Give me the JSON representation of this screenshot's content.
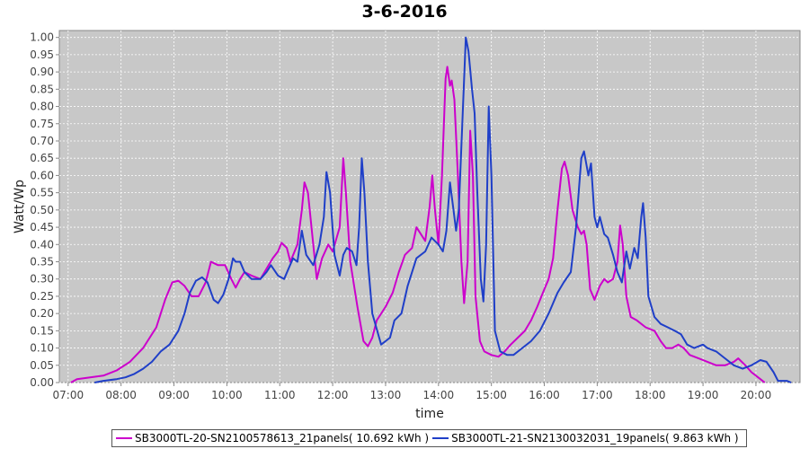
{
  "chart_data": {
    "type": "line",
    "title": "3-6-2016",
    "xlabel": "time",
    "ylabel": "Watt/Wp",
    "x_ticks": [
      "07:00",
      "08:00",
      "09:00",
      "10:00",
      "11:00",
      "12:00",
      "13:00",
      "14:00",
      "15:00",
      "16:00",
      "17:00",
      "18:00",
      "19:00",
      "20:00"
    ],
    "xlim": [
      "06:50",
      "20:50"
    ],
    "ylim": [
      0,
      1.02
    ],
    "y_ticks": [
      0.0,
      0.05,
      0.1,
      0.15,
      0.2,
      0.25,
      0.3,
      0.35,
      0.4,
      0.45,
      0.5,
      0.55,
      0.6,
      0.65,
      0.7,
      0.75,
      0.8,
      0.85,
      0.9,
      0.95,
      1.0
    ],
    "grid": true,
    "legend_position": "bottom",
    "series": [
      {
        "name": "SB3000TL-20-SN2100578613_21panels( 10.692 kWh )",
        "color": "#cc00cc",
        "points": [
          [
            "07:03",
            0.0
          ],
          [
            "07:10",
            0.01
          ],
          [
            "07:25",
            0.015
          ],
          [
            "07:40",
            0.02
          ],
          [
            "07:55",
            0.035
          ],
          [
            "08:10",
            0.06
          ],
          [
            "08:25",
            0.1
          ],
          [
            "08:40",
            0.16
          ],
          [
            "08:50",
            0.24
          ],
          [
            "08:58",
            0.29
          ],
          [
            "09:05",
            0.295
          ],
          [
            "09:12",
            0.28
          ],
          [
            "09:20",
            0.25
          ],
          [
            "09:28",
            0.25
          ],
          [
            "09:36",
            0.29
          ],
          [
            "09:42",
            0.35
          ],
          [
            "09:50",
            0.34
          ],
          [
            "09:58",
            0.34
          ],
          [
            "10:05",
            0.3
          ],
          [
            "10:10",
            0.275
          ],
          [
            "10:15",
            0.3
          ],
          [
            "10:20",
            0.32
          ],
          [
            "10:28",
            0.31
          ],
          [
            "10:38",
            0.3
          ],
          [
            "10:45",
            0.33
          ],
          [
            "10:52",
            0.36
          ],
          [
            "10:58",
            0.38
          ],
          [
            "11:02",
            0.405
          ],
          [
            "11:08",
            0.39
          ],
          [
            "11:12",
            0.35
          ],
          [
            "11:20",
            0.4
          ],
          [
            "11:25",
            0.5
          ],
          [
            "11:28",
            0.58
          ],
          [
            "11:32",
            0.55
          ],
          [
            "11:38",
            0.4
          ],
          [
            "11:42",
            0.3
          ],
          [
            "11:48",
            0.36
          ],
          [
            "11:55",
            0.4
          ],
          [
            "12:00",
            0.38
          ],
          [
            "12:08",
            0.45
          ],
          [
            "12:12",
            0.65
          ],
          [
            "12:15",
            0.55
          ],
          [
            "12:20",
            0.35
          ],
          [
            "12:28",
            0.22
          ],
          [
            "12:35",
            0.12
          ],
          [
            "12:40",
            0.105
          ],
          [
            "12:45",
            0.13
          ],
          [
            "12:50",
            0.18
          ],
          [
            "13:00",
            0.22
          ],
          [
            "13:08",
            0.26
          ],
          [
            "13:15",
            0.32
          ],
          [
            "13:22",
            0.37
          ],
          [
            "13:30",
            0.39
          ],
          [
            "13:35",
            0.45
          ],
          [
            "13:40",
            0.43
          ],
          [
            "13:45",
            0.41
          ],
          [
            "13:50",
            0.51
          ],
          [
            "13:53",
            0.6
          ],
          [
            "13:56",
            0.5
          ],
          [
            "14:00",
            0.4
          ],
          [
            "14:04",
            0.6
          ],
          [
            "14:08",
            0.88
          ],
          [
            "14:10",
            0.915
          ],
          [
            "14:13",
            0.86
          ],
          [
            "14:15",
            0.875
          ],
          [
            "14:18",
            0.82
          ],
          [
            "14:22",
            0.6
          ],
          [
            "14:26",
            0.35
          ],
          [
            "14:29",
            0.23
          ],
          [
            "14:33",
            0.35
          ],
          [
            "14:36",
            0.73
          ],
          [
            "14:39",
            0.6
          ],
          [
            "14:42",
            0.25
          ],
          [
            "14:47",
            0.12
          ],
          [
            "14:52",
            0.09
          ],
          [
            "15:00",
            0.08
          ],
          [
            "15:08",
            0.075
          ],
          [
            "15:15",
            0.09
          ],
          [
            "15:22",
            0.11
          ],
          [
            "15:30",
            0.13
          ],
          [
            "15:38",
            0.15
          ],
          [
            "15:45",
            0.18
          ],
          [
            "15:52",
            0.22
          ],
          [
            "16:00",
            0.27
          ],
          [
            "16:05",
            0.3
          ],
          [
            "16:10",
            0.36
          ],
          [
            "16:15",
            0.5
          ],
          [
            "16:20",
            0.62
          ],
          [
            "16:23",
            0.64
          ],
          [
            "16:27",
            0.6
          ],
          [
            "16:32",
            0.5
          ],
          [
            "16:38",
            0.45
          ],
          [
            "16:42",
            0.43
          ],
          [
            "16:45",
            0.44
          ],
          [
            "16:48",
            0.4
          ],
          [
            "16:52",
            0.27
          ],
          [
            "16:57",
            0.24
          ],
          [
            "17:03",
            0.28
          ],
          [
            "17:08",
            0.3
          ],
          [
            "17:12",
            0.29
          ],
          [
            "17:18",
            0.3
          ],
          [
            "17:23",
            0.35
          ],
          [
            "17:26",
            0.455
          ],
          [
            "17:29",
            0.4
          ],
          [
            "17:33",
            0.25
          ],
          [
            "17:38",
            0.19
          ],
          [
            "17:45",
            0.18
          ],
          [
            "17:55",
            0.16
          ],
          [
            "18:05",
            0.15
          ],
          [
            "18:12",
            0.12
          ],
          [
            "18:18",
            0.1
          ],
          [
            "18:25",
            0.1
          ],
          [
            "18:32",
            0.11
          ],
          [
            "18:38",
            0.1
          ],
          [
            "18:45",
            0.08
          ],
          [
            "18:55",
            0.07
          ],
          [
            "19:05",
            0.06
          ],
          [
            "19:15",
            0.05
          ],
          [
            "19:25",
            0.05
          ],
          [
            "19:35",
            0.06
          ],
          [
            "19:40",
            0.07
          ],
          [
            "19:48",
            0.05
          ],
          [
            "19:55",
            0.03
          ],
          [
            "20:05",
            0.01
          ],
          [
            "20:10",
            0.0
          ]
        ]
      },
      {
        "name": "SB3000TL-21-SN2130032031_19panels( 9.863 kWh )",
        "color": "#1f3fc8",
        "points": [
          [
            "07:30",
            0.0
          ],
          [
            "07:40",
            0.005
          ],
          [
            "07:55",
            0.01
          ],
          [
            "08:05",
            0.015
          ],
          [
            "08:15",
            0.025
          ],
          [
            "08:25",
            0.04
          ],
          [
            "08:35",
            0.06
          ],
          [
            "08:45",
            0.09
          ],
          [
            "08:55",
            0.11
          ],
          [
            "09:05",
            0.15
          ],
          [
            "09:12",
            0.2
          ],
          [
            "09:18",
            0.26
          ],
          [
            "09:25",
            0.295
          ],
          [
            "09:32",
            0.305
          ],
          [
            "09:38",
            0.29
          ],
          [
            "09:45",
            0.24
          ],
          [
            "09:50",
            0.23
          ],
          [
            "09:56",
            0.255
          ],
          [
            "10:02",
            0.3
          ],
          [
            "10:07",
            0.36
          ],
          [
            "10:10",
            0.35
          ],
          [
            "10:15",
            0.35
          ],
          [
            "10:20",
            0.32
          ],
          [
            "10:28",
            0.3
          ],
          [
            "10:38",
            0.3
          ],
          [
            "10:45",
            0.32
          ],
          [
            "10:50",
            0.34
          ],
          [
            "10:58",
            0.31
          ],
          [
            "11:05",
            0.3
          ],
          [
            "11:10",
            0.33
          ],
          [
            "11:15",
            0.36
          ],
          [
            "11:20",
            0.35
          ],
          [
            "11:25",
            0.44
          ],
          [
            "11:30",
            0.37
          ],
          [
            "11:38",
            0.34
          ],
          [
            "11:45",
            0.4
          ],
          [
            "11:50",
            0.48
          ],
          [
            "11:53",
            0.61
          ],
          [
            "11:57",
            0.55
          ],
          [
            "12:02",
            0.37
          ],
          [
            "12:08",
            0.31
          ],
          [
            "12:12",
            0.37
          ],
          [
            "12:16",
            0.39
          ],
          [
            "12:22",
            0.38
          ],
          [
            "12:27",
            0.34
          ],
          [
            "12:30",
            0.45
          ],
          [
            "12:33",
            0.65
          ],
          [
            "12:36",
            0.55
          ],
          [
            "12:40",
            0.35
          ],
          [
            "12:45",
            0.2
          ],
          [
            "12:55",
            0.11
          ],
          [
            "13:05",
            0.13
          ],
          [
            "13:10",
            0.18
          ],
          [
            "13:18",
            0.2
          ],
          [
            "13:25",
            0.28
          ],
          [
            "13:35",
            0.36
          ],
          [
            "13:45",
            0.38
          ],
          [
            "13:52",
            0.42
          ],
          [
            "14:00",
            0.4
          ],
          [
            "14:05",
            0.38
          ],
          [
            "14:09",
            0.44
          ],
          [
            "14:13",
            0.58
          ],
          [
            "14:17",
            0.5
          ],
          [
            "14:20",
            0.44
          ],
          [
            "14:23",
            0.5
          ],
          [
            "14:27",
            0.75
          ],
          [
            "14:31",
            1.0
          ],
          [
            "14:34",
            0.96
          ],
          [
            "14:38",
            0.85
          ],
          [
            "14:41",
            0.78
          ],
          [
            "14:44",
            0.55
          ],
          [
            "14:48",
            0.3
          ],
          [
            "14:51",
            0.235
          ],
          [
            "14:54",
            0.4
          ],
          [
            "14:57",
            0.8
          ],
          [
            "15:00",
            0.6
          ],
          [
            "15:04",
            0.15
          ],
          [
            "15:10",
            0.09
          ],
          [
            "15:18",
            0.08
          ],
          [
            "15:25",
            0.08
          ],
          [
            "15:35",
            0.1
          ],
          [
            "15:45",
            0.12
          ],
          [
            "15:55",
            0.15
          ],
          [
            "16:05",
            0.2
          ],
          [
            "16:15",
            0.26
          ],
          [
            "16:22",
            0.29
          ],
          [
            "16:30",
            0.32
          ],
          [
            "16:36",
            0.45
          ],
          [
            "16:42",
            0.65
          ],
          [
            "16:45",
            0.67
          ],
          [
            "16:50",
            0.6
          ],
          [
            "16:53",
            0.635
          ],
          [
            "16:57",
            0.48
          ],
          [
            "17:00",
            0.45
          ],
          [
            "17:03",
            0.48
          ],
          [
            "17:08",
            0.43
          ],
          [
            "17:12",
            0.42
          ],
          [
            "17:18",
            0.37
          ],
          [
            "17:23",
            0.32
          ],
          [
            "17:28",
            0.29
          ],
          [
            "17:33",
            0.38
          ],
          [
            "17:37",
            0.33
          ],
          [
            "17:42",
            0.39
          ],
          [
            "17:46",
            0.36
          ],
          [
            "17:50",
            0.48
          ],
          [
            "17:52",
            0.52
          ],
          [
            "17:55",
            0.42
          ],
          [
            "17:58",
            0.25
          ],
          [
            "18:05",
            0.19
          ],
          [
            "18:12",
            0.17
          ],
          [
            "18:20",
            0.16
          ],
          [
            "18:28",
            0.15
          ],
          [
            "18:35",
            0.14
          ],
          [
            "18:42",
            0.11
          ],
          [
            "18:50",
            0.1
          ],
          [
            "19:00",
            0.11
          ],
          [
            "19:05",
            0.1
          ],
          [
            "19:15",
            0.09
          ],
          [
            "19:25",
            0.07
          ],
          [
            "19:35",
            0.05
          ],
          [
            "19:45",
            0.04
          ],
          [
            "19:55",
            0.05
          ],
          [
            "20:05",
            0.065
          ],
          [
            "20:12",
            0.06
          ],
          [
            "20:20",
            0.03
          ],
          [
            "20:25",
            0.005
          ],
          [
            "20:35",
            0.005
          ],
          [
            "20:40",
            0.0
          ]
        ]
      }
    ]
  }
}
